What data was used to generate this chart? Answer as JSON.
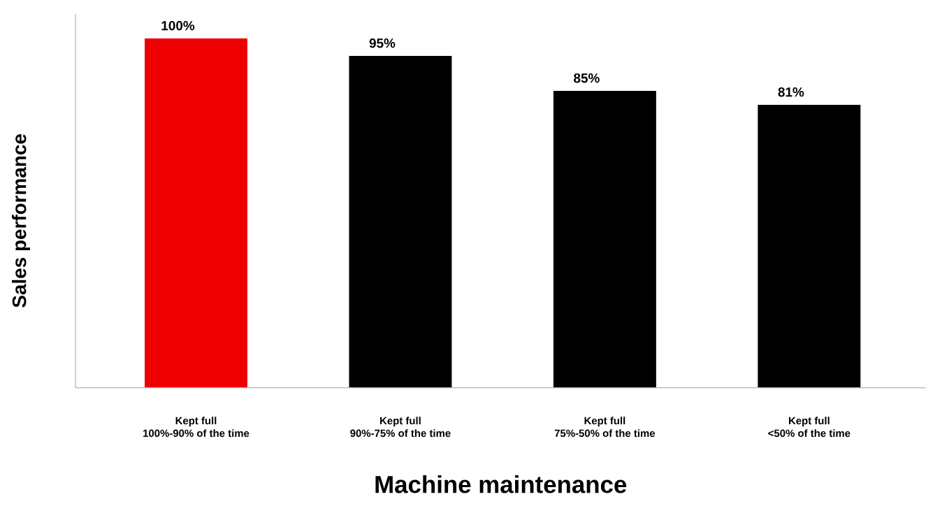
{
  "chart_data": {
    "type": "bar",
    "categories": [
      "Kept full\n100%-90% of the time",
      "Kept full\n90%-75% of the time",
      "Kept full\n75%-50% of the time",
      "Kept full\n<50% of the time"
    ],
    "values": [
      100,
      95,
      85,
      81
    ],
    "colors": [
      "#ee0000",
      "#000000",
      "#000000",
      "#000000"
    ],
    "value_labels": [
      "100%",
      "95%",
      "85%",
      "81%"
    ],
    "xlabel": "Machine maintenance",
    "ylabel": "Sales performance"
  }
}
